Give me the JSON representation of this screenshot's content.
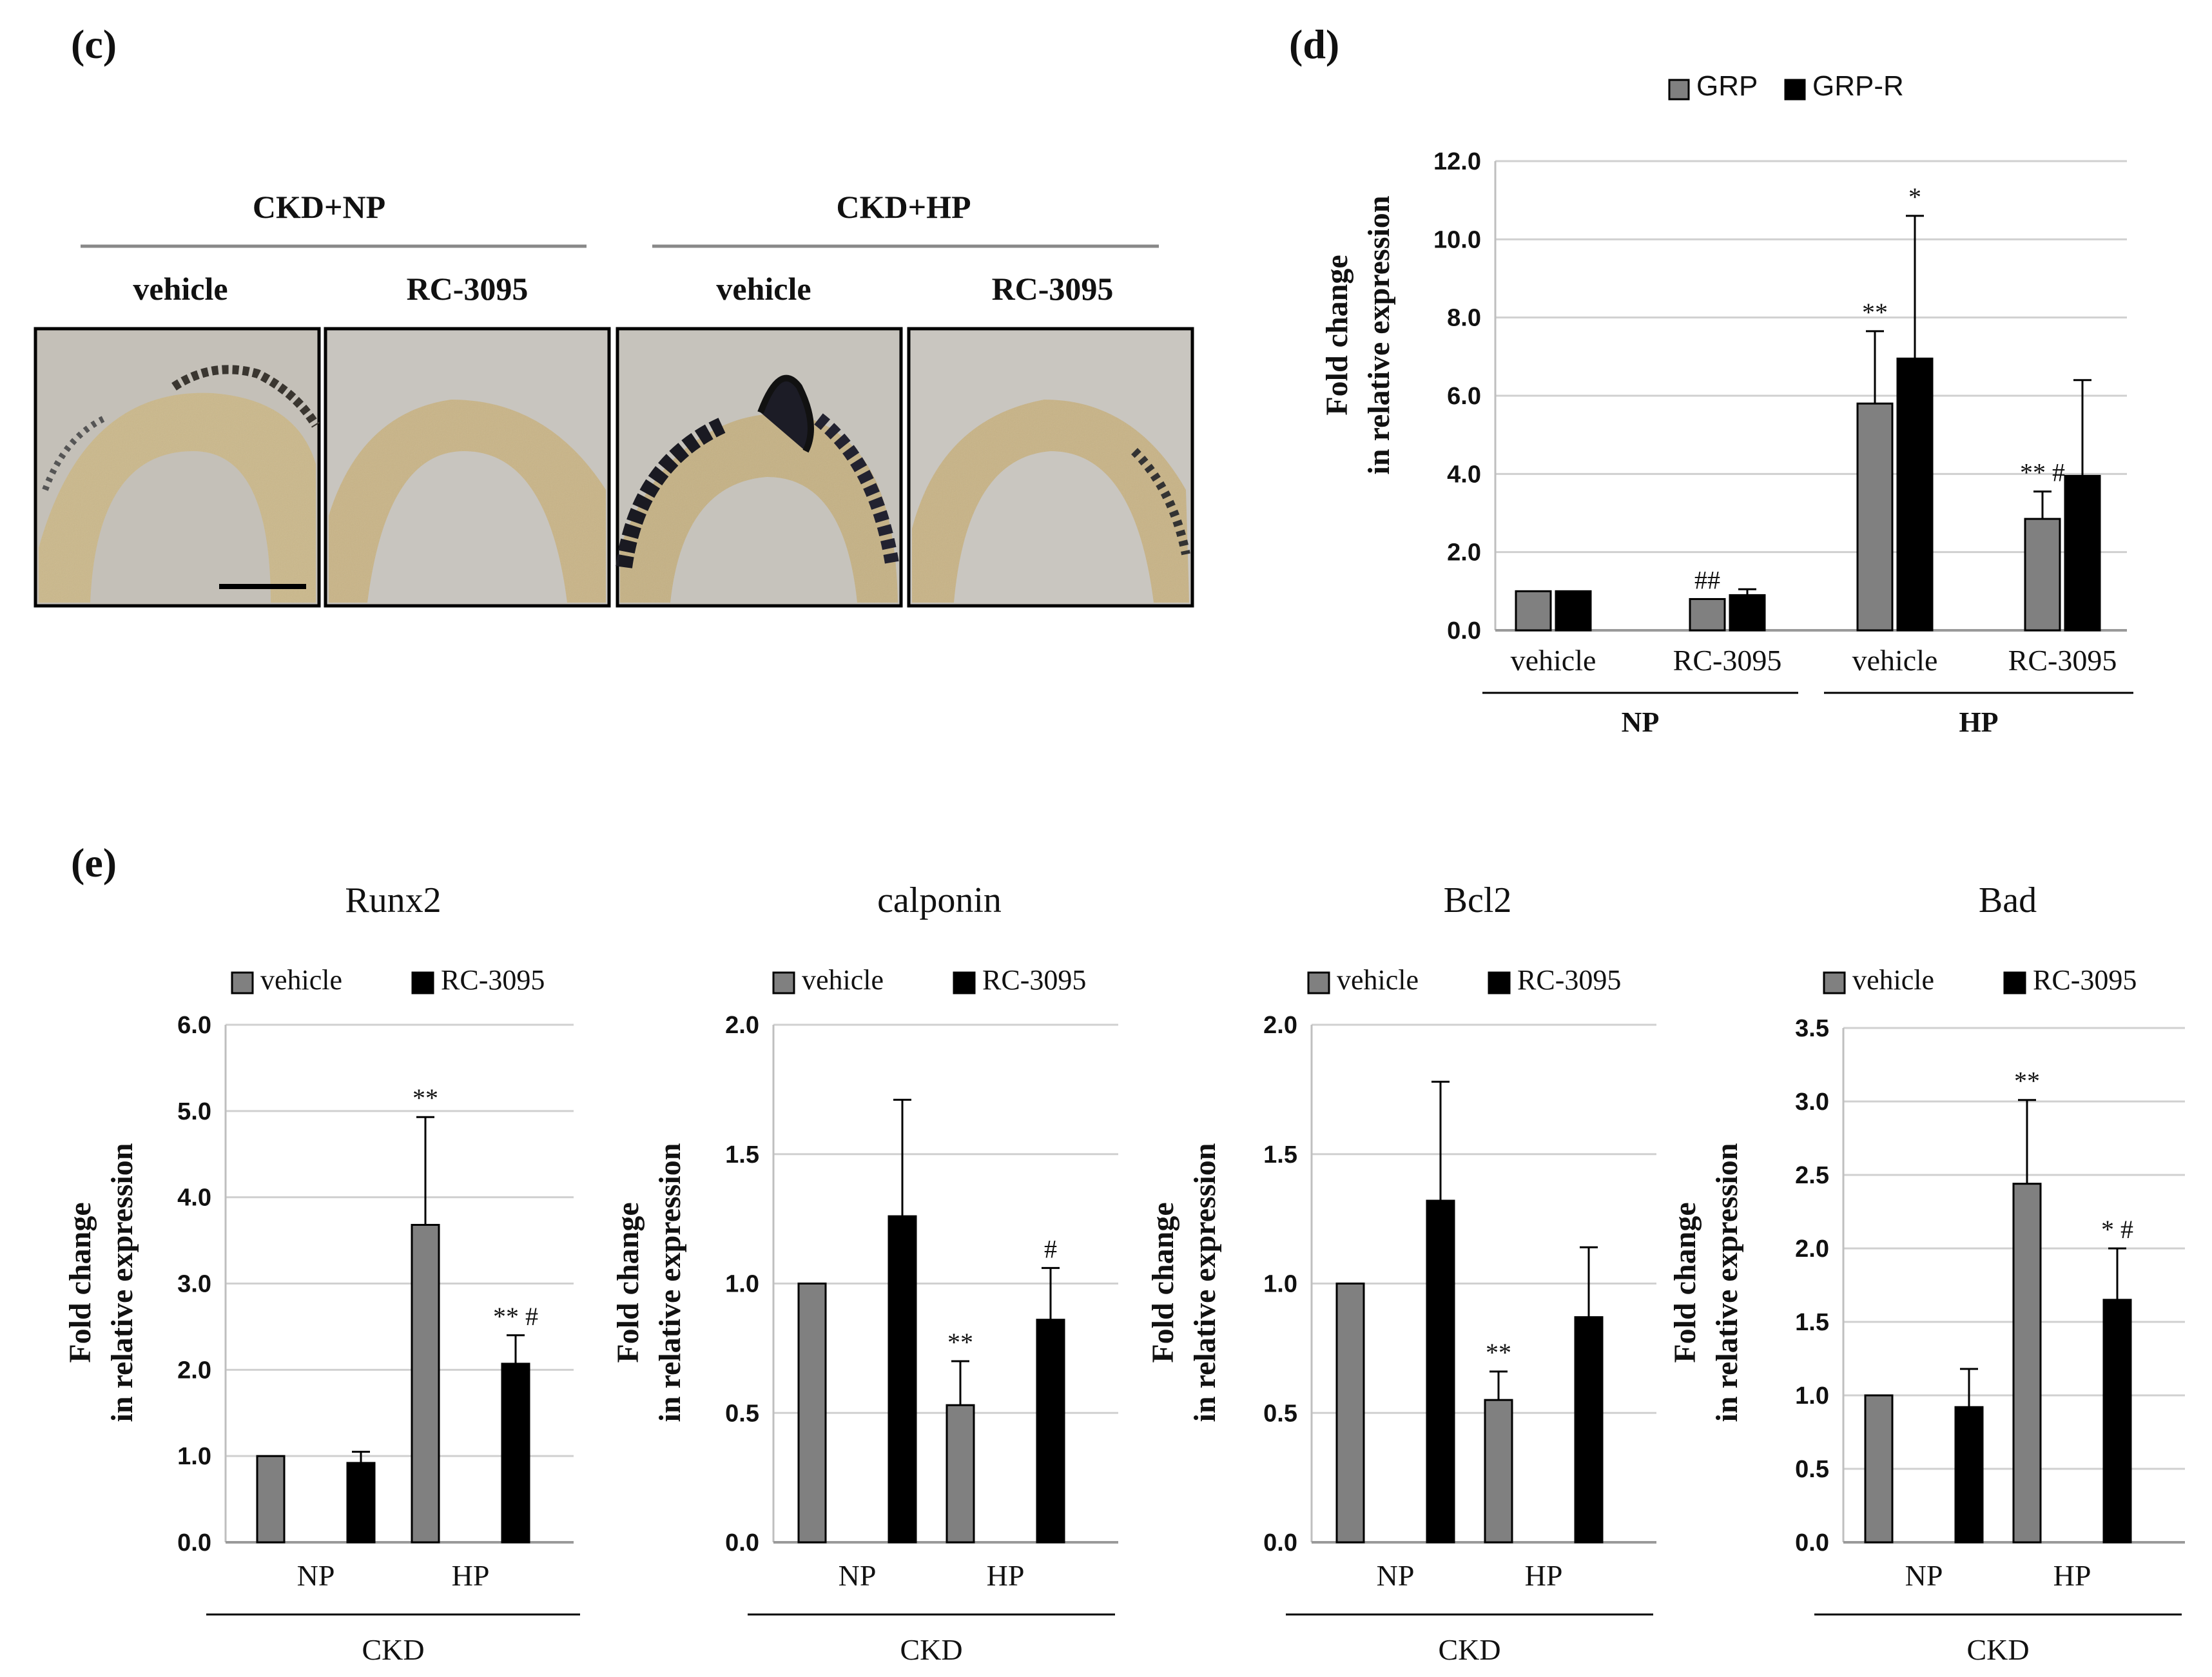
{
  "panels": {
    "c": {
      "label": "(c)",
      "group_headers": [
        "CKD+NP",
        "CKD+HP"
      ],
      "image_labels": [
        "vehicle",
        "RC-3095",
        "vehicle",
        "RC-3095"
      ],
      "images": [
        {
          "name": "ckd-np-vehicle",
          "stain": "heavy"
        },
        {
          "name": "ckd-np-rc3095",
          "stain": "light"
        },
        {
          "name": "ckd-hp-vehicle",
          "stain": "very-heavy"
        },
        {
          "name": "ckd-hp-rc3095",
          "stain": "medium"
        }
      ]
    },
    "d": {
      "label": "(d)"
    },
    "e": {
      "label": "(e)"
    }
  },
  "chart_data": [
    {
      "id": "d",
      "type": "bar",
      "title": "",
      "legend": [
        "GRP",
        "GRP-R"
      ],
      "colors": [
        "#808080",
        "#000000"
      ],
      "ylabel": [
        "Fold change",
        "in relative expression"
      ],
      "ylim": [
        0,
        12
      ],
      "yticks": [
        "0.0",
        "2.0",
        "4.0",
        "6.0",
        "8.0",
        "10.0",
        "12.0"
      ],
      "categories": [
        "vehicle",
        "RC-3095",
        "vehicle",
        "RC-3095"
      ],
      "groups": [
        {
          "label": "NP",
          "span": [
            0,
            1
          ]
        },
        {
          "label": "HP",
          "span": [
            2,
            3
          ]
        }
      ],
      "series": [
        {
          "name": "GRP",
          "values": [
            1.0,
            0.8,
            5.8,
            2.85
          ],
          "errors": [
            0,
            0,
            1.85,
            0.7
          ],
          "sig": [
            "",
            "##",
            "**",
            "**#"
          ]
        },
        {
          "name": "GRP-R",
          "values": [
            1.0,
            0.9,
            6.95,
            3.95
          ],
          "errors": [
            0,
            0.15,
            3.65,
            2.45
          ],
          "sig": [
            "",
            "",
            "*",
            ""
          ]
        }
      ]
    },
    {
      "id": "e1",
      "type": "bar",
      "title": "Runx2",
      "legend": [
        "vehicle",
        "RC-3095"
      ],
      "colors": [
        "#808080",
        "#000000"
      ],
      "ylabel": [
        "Fold change",
        "in relative expression"
      ],
      "ylim": [
        0,
        6
      ],
      "yticks": [
        "0.0",
        "1.0",
        "2.0",
        "3.0",
        "4.0",
        "5.0",
        "6.0"
      ],
      "categories": [
        "NP",
        "HP"
      ],
      "groups": [
        {
          "label": "CKD",
          "span": [
            0,
            1
          ]
        }
      ],
      "series": [
        {
          "name": "vehicle",
          "values": [
            1.0,
            3.68
          ],
          "errors": [
            0,
            1.25
          ],
          "sig": [
            "",
            "**"
          ]
        },
        {
          "name": "RC-3095",
          "values": [
            0.92,
            2.07
          ],
          "errors": [
            0.13,
            0.33
          ],
          "sig": [
            "",
            "**#"
          ]
        }
      ]
    },
    {
      "id": "e2",
      "type": "bar",
      "title": "calponin",
      "legend": [
        "vehicle",
        "RC-3095"
      ],
      "colors": [
        "#808080",
        "#000000"
      ],
      "ylabel": [
        "Fold change",
        "in relative expression"
      ],
      "ylim": [
        0,
        2
      ],
      "yticks": [
        "0.0",
        "0.5",
        "1.0",
        "1.5",
        "2.0"
      ],
      "categories": [
        "NP",
        "HP"
      ],
      "groups": [
        {
          "label": "CKD",
          "span": [
            0,
            1
          ]
        }
      ],
      "series": [
        {
          "name": "vehicle",
          "values": [
            1.0,
            0.53
          ],
          "errors": [
            0,
            0.17
          ],
          "sig": [
            "",
            "**"
          ]
        },
        {
          "name": "RC-3095",
          "values": [
            1.26,
            0.86
          ],
          "errors": [
            0.45,
            0.2
          ],
          "sig": [
            "",
            "#"
          ]
        }
      ]
    },
    {
      "id": "e3",
      "type": "bar",
      "title": "Bcl2",
      "legend": [
        "vehicle",
        "RC-3095"
      ],
      "colors": [
        "#808080",
        "#000000"
      ],
      "ylabel": [
        "Fold change",
        "in relative expression"
      ],
      "ylim": [
        0,
        2
      ],
      "yticks": [
        "0.0",
        "0.5",
        "1.0",
        "1.5",
        "2.0"
      ],
      "categories": [
        "NP",
        "HP"
      ],
      "groups": [
        {
          "label": "CKD",
          "span": [
            0,
            1
          ]
        }
      ],
      "series": [
        {
          "name": "vehicle",
          "values": [
            1.0,
            0.55
          ],
          "errors": [
            0,
            0.11
          ],
          "sig": [
            "",
            "**"
          ]
        },
        {
          "name": "RC-3095",
          "values": [
            1.32,
            0.87
          ],
          "errors": [
            0.46,
            0.27
          ],
          "sig": [
            "",
            ""
          ]
        }
      ]
    },
    {
      "id": "e4",
      "type": "bar",
      "title": "Bad",
      "legend": [
        "vehicle",
        "RC-3095"
      ],
      "colors": [
        "#808080",
        "#000000"
      ],
      "ylabel": [
        "Fold change",
        "in relative expression"
      ],
      "ylim": [
        0,
        3.5
      ],
      "yticks": [
        "0.0",
        "0.5",
        "1.0",
        "1.5",
        "2.0",
        "2.5",
        "3.0",
        "3.5"
      ],
      "categories": [
        "NP",
        "HP"
      ],
      "groups": [
        {
          "label": "CKD",
          "span": [
            0,
            1
          ]
        }
      ],
      "series": [
        {
          "name": "vehicle",
          "values": [
            1.0,
            2.44
          ],
          "errors": [
            0,
            0.57
          ],
          "sig": [
            "",
            "**"
          ]
        },
        {
          "name": "RC-3095",
          "values": [
            0.92,
            1.65
          ],
          "errors": [
            0.26,
            0.35
          ],
          "sig": [
            "",
            "*#"
          ]
        }
      ]
    }
  ]
}
